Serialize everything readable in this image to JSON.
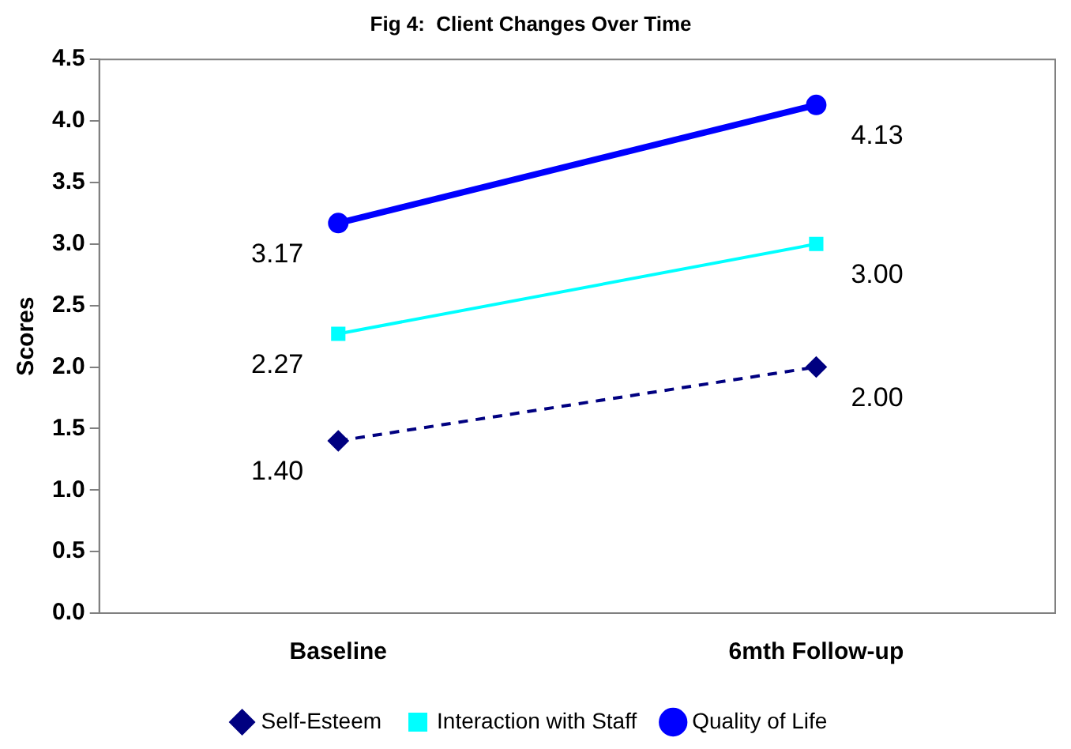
{
  "chart_data": {
    "type": "line",
    "title": "Fig 4:  Client Changes Over Time",
    "ylabel": "Scores",
    "categories": [
      "Baseline",
      "6mth Follow-up"
    ],
    "ylim": [
      0,
      4.5
    ],
    "yticks": [
      {
        "value": 0,
        "label": "0.0"
      },
      {
        "value": 0.5,
        "label": "0.5"
      },
      {
        "value": 1,
        "label": "1.0"
      },
      {
        "value": 1.5,
        "label": "1.5"
      },
      {
        "value": 2,
        "label": "2.0"
      },
      {
        "value": 2.5,
        "label": "2.5"
      },
      {
        "value": 3,
        "label": "3.0"
      },
      {
        "value": 3.5,
        "label": "3.5"
      },
      {
        "value": 4,
        "label": "4.0"
      },
      {
        "value": 4.5,
        "label": "4.5"
      }
    ],
    "grid": false,
    "legend": "bottom",
    "series": [
      {
        "name": "Self-Esteem",
        "color": "#000080",
        "values": [
          1.4,
          2.0
        ],
        "value_labels": [
          "1.40",
          "2.00"
        ],
        "marker": "diamond",
        "line_style": "dashed"
      },
      {
        "name": "Interaction with Staff",
        "color": "#00ffff",
        "values": [
          2.27,
          3.0
        ],
        "value_labels": [
          "2.27",
          "3.00"
        ],
        "marker": "square",
        "line_style": "solid"
      },
      {
        "name": "Quality of Life",
        "color": "#0000ff",
        "values": [
          3.17,
          4.13
        ],
        "value_labels": [
          "3.17",
          "4.13"
        ],
        "marker": "circle",
        "line_style": "solid"
      }
    ]
  }
}
